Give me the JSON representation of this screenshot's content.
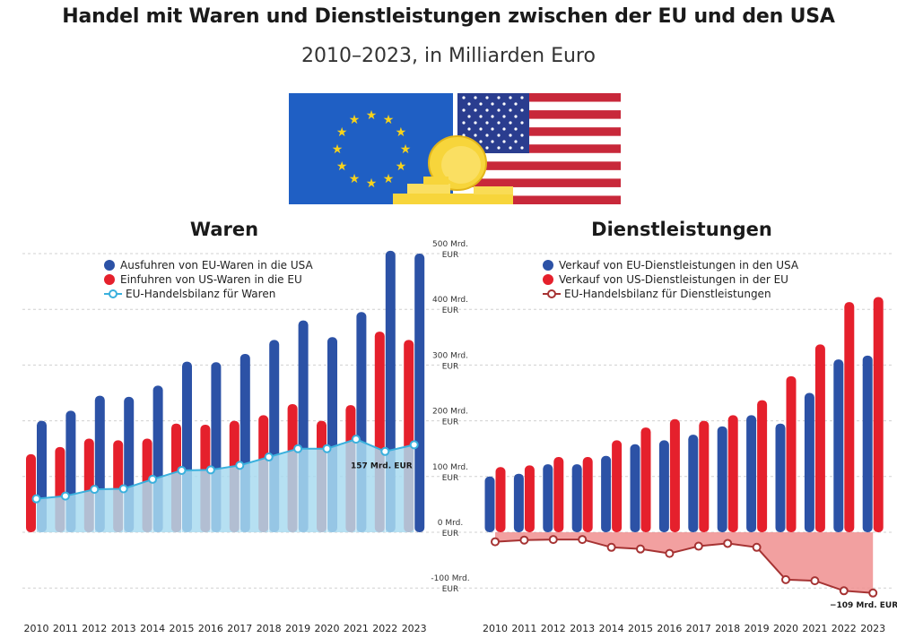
{
  "header": {
    "title": "Handel mit Waren und Dienstleistungen zwischen der EU und den USA",
    "subtitle": "2010–2023, in Milliarden Euro"
  },
  "colors": {
    "blue": "#2c52a6",
    "red": "#e5202c",
    "lightblue": "#3ab0dd",
    "balance_fill_goods": "#a9daf0",
    "balance_fill_services": "#f08f8f",
    "balance_line_services": "#a63333",
    "grid": "#d0d0d0"
  },
  "chart_data": [
    {
      "type": "bar",
      "title": "Waren",
      "categories": [
        "2010",
        "2011",
        "2012",
        "2013",
        "2014",
        "2015",
        "2016",
        "2017",
        "2018",
        "2019",
        "2020",
        "2021",
        "2022",
        "2023"
      ],
      "series": [
        {
          "name": "Ausfuhren von EU-Waren in die USA",
          "color": "#2c52a6",
          "values": [
            200,
            218,
            245,
            243,
            263,
            306,
            305,
            320,
            345,
            380,
            350,
            395,
            505,
            500
          ]
        },
        {
          "name": "Einfuhren von US-Waren in die EU",
          "color": "#e5202c",
          "values": [
            140,
            153,
            168,
            165,
            168,
            195,
            193,
            200,
            210,
            230,
            200,
            228,
            360,
            345
          ]
        },
        {
          "name": "EU-Handelsbilanz für Waren",
          "color": "#3ab0dd",
          "kind": "area-line",
          "values": [
            60,
            65,
            77,
            78,
            95,
            111,
            112,
            120,
            135,
            150,
            150,
            167,
            145,
            157
          ]
        }
      ],
      "annotations": [
        {
          "index": 13,
          "text": "157 Mrd. EUR"
        }
      ],
      "ylim": [
        -110,
        500
      ],
      "yticks": [
        -100,
        0,
        100,
        200,
        300,
        400,
        500
      ],
      "ytick_labels": [
        [
          "-100 Mrd.",
          "EUR"
        ],
        [
          "0 Mrd.",
          "EUR"
        ],
        [
          "100 Mrd.",
          "EUR"
        ],
        [
          "200 Mrd.",
          "EUR"
        ],
        [
          "300 Mrd.",
          "EUR"
        ],
        [
          "400 Mrd.",
          "EUR"
        ],
        [
          "500 Mrd.",
          "EUR"
        ]
      ],
      "grid": true,
      "legend": "top-left"
    },
    {
      "type": "bar",
      "title": "Dienstleistungen",
      "categories": [
        "2010",
        "2011",
        "2012",
        "2013",
        "2014",
        "2015",
        "2016",
        "2017",
        "2018",
        "2019",
        "2020",
        "2021",
        "2022",
        "2023"
      ],
      "series": [
        {
          "name": "Verkauf von EU-Dienstleistungen in den USA",
          "color": "#2c52a6",
          "values": [
            100,
            105,
            122,
            122,
            137,
            158,
            165,
            175,
            190,
            210,
            195,
            250,
            310,
            317
          ]
        },
        {
          "name": "Verkauf von US-Dienstleistungen in der EU",
          "color": "#e5202c",
          "values": [
            117,
            120,
            135,
            135,
            165,
            188,
            203,
            200,
            210,
            237,
            280,
            337,
            413,
            422
          ]
        },
        {
          "name": "EU-Handelsbilanz für Dienstleistungen",
          "color": "#a63333",
          "kind": "area-line",
          "values": [
            -17,
            -14,
            -13,
            -13,
            -27,
            -30,
            -38,
            -25,
            -20,
            -27,
            -85,
            -87,
            -105,
            -109
          ]
        }
      ],
      "annotations": [
        {
          "index": 13,
          "text": "−109 Mrd. EUR"
        }
      ],
      "ylim": [
        -110,
        500
      ],
      "grid": true,
      "legend": "top-left"
    }
  ]
}
